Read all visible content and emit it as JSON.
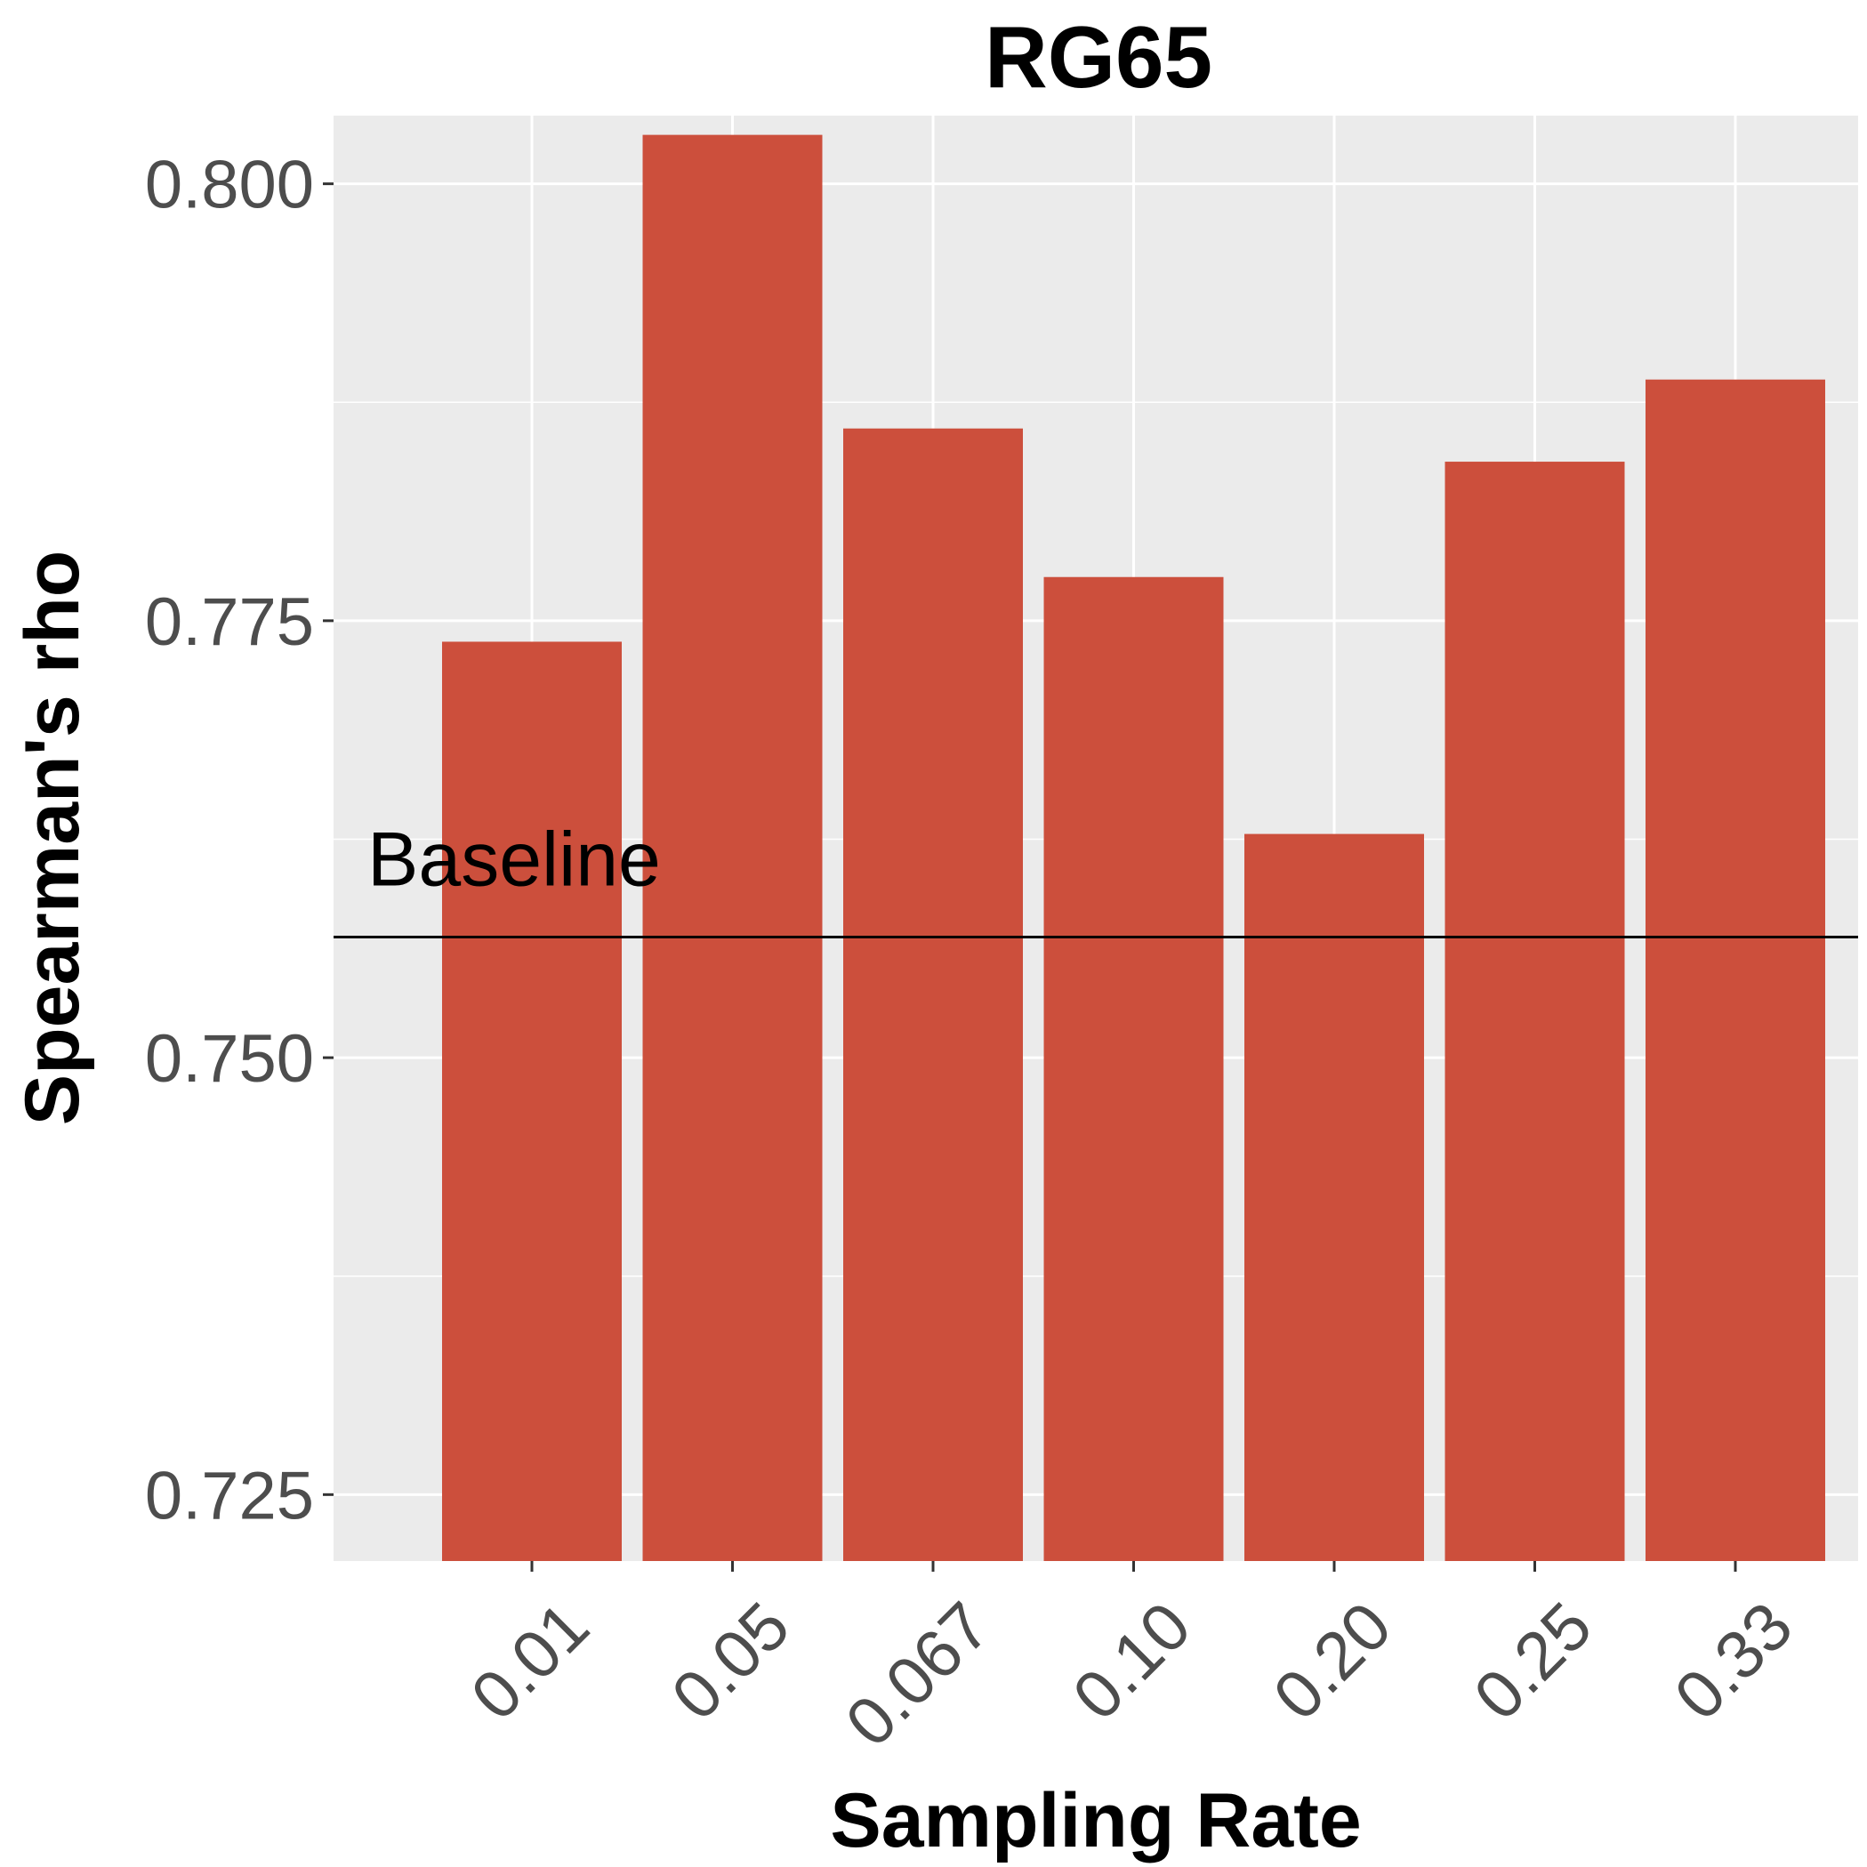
{
  "chart_data": {
    "type": "bar",
    "title": "RG65",
    "xlabel": "Sampling Rate",
    "ylabel": "Spearman's rho",
    "categories": [
      "0.01",
      "0.05",
      "0.067",
      "0.10",
      "0.20",
      "0.25",
      "0.33"
    ],
    "values": [
      0.7738,
      0.8028,
      0.786,
      0.7775,
      0.7628,
      0.7841,
      0.7888
    ],
    "ylim": [
      0.7212,
      0.8039
    ],
    "yticks": [
      0.725,
      0.75,
      0.775,
      0.8
    ],
    "ytick_labels": [
      "0.725",
      "0.750",
      "0.775",
      "0.800"
    ],
    "ytick_minor": [
      0.7375,
      0.7625,
      0.7875
    ],
    "baseline": {
      "label": "Baseline",
      "value": 0.7569
    },
    "grid": true,
    "legend": "none",
    "colors": {
      "bar": "#cc4f3c",
      "panel": "#ebebeb",
      "grid": "#ffffff",
      "baseline": "#000000"
    },
    "x_tick_rotation_deg": 45
  }
}
